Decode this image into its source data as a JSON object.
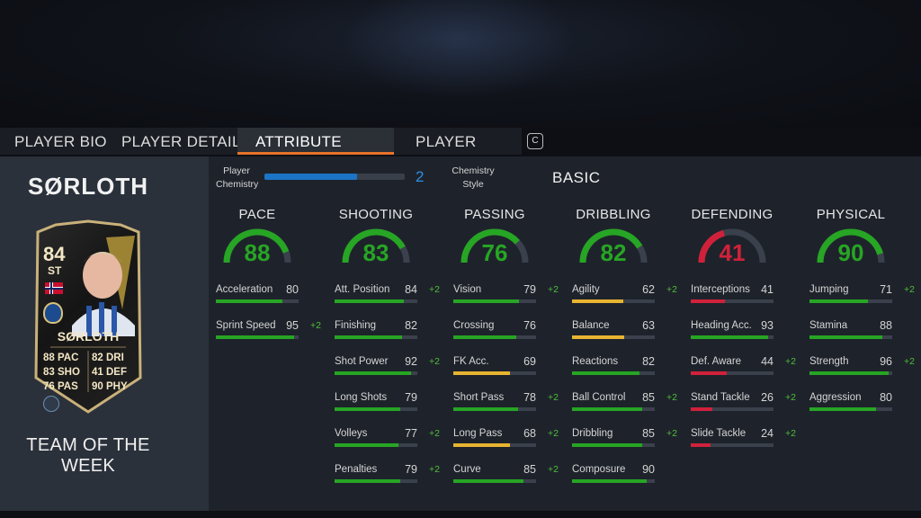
{
  "tabs": [
    {
      "label": "PLAYER BIO"
    },
    {
      "label": "PLAYER DETAILS"
    },
    {
      "label": "ATTRIBUTE DETAILS"
    },
    {
      "label": "PLAYER TRAITS"
    }
  ],
  "key_hint": "C",
  "player": {
    "name": "SØRLOTH",
    "card": {
      "rating": "84",
      "position": "ST",
      "name": "SØRLOTH",
      "stats_left": [
        "88 PAC",
        "83 SHO",
        "76 PAS"
      ],
      "stats_right": [
        "82 DRI",
        "41 DEF",
        "90 PHY"
      ]
    },
    "team_label": "TEAM OF THE WEEK"
  },
  "chemistry": {
    "label": "Player Chemistry",
    "value": "2",
    "fill_fraction": 0.66,
    "style_label": "Chemistry Style",
    "style_value": "BASIC"
  },
  "colors": {
    "green": "#27a524",
    "yellow": "#e8b431",
    "red": "#d1213a",
    "blue": "#1c74c7",
    "orange": "#e8732a"
  },
  "categories": [
    {
      "title": "PACE",
      "value": "88",
      "color": "#27a524",
      "attrs": [
        {
          "name": "Acceleration",
          "value": "80",
          "boost": ""
        },
        {
          "name": "Sprint Speed",
          "value": "95",
          "boost": "+2"
        }
      ]
    },
    {
      "title": "SHOOTING",
      "value": "83",
      "color": "#27a524",
      "attrs": [
        {
          "name": "Att. Position",
          "value": "84",
          "boost": "+2"
        },
        {
          "name": "Finishing",
          "value": "82",
          "boost": ""
        },
        {
          "name": "Shot Power",
          "value": "92",
          "boost": "+2"
        },
        {
          "name": "Long Shots",
          "value": "79",
          "boost": ""
        },
        {
          "name": "Volleys",
          "value": "77",
          "boost": "+2"
        },
        {
          "name": "Penalties",
          "value": "79",
          "boost": "+2"
        }
      ]
    },
    {
      "title": "PASSING",
      "value": "76",
      "color": "#27a524",
      "attrs": [
        {
          "name": "Vision",
          "value": "79",
          "boost": "+2"
        },
        {
          "name": "Crossing",
          "value": "76",
          "boost": ""
        },
        {
          "name": "FK Acc.",
          "value": "69",
          "boost": ""
        },
        {
          "name": "Short Pass",
          "value": "78",
          "boost": "+2"
        },
        {
          "name": "Long Pass",
          "value": "68",
          "boost": "+2"
        },
        {
          "name": "Curve",
          "value": "85",
          "boost": "+2"
        }
      ]
    },
    {
      "title": "DRIBBLING",
      "value": "82",
      "color": "#27a524",
      "attrs": [
        {
          "name": "Agility",
          "value": "62",
          "boost": "+2"
        },
        {
          "name": "Balance",
          "value": "63",
          "boost": ""
        },
        {
          "name": "Reactions",
          "value": "82",
          "boost": ""
        },
        {
          "name": "Ball Control",
          "value": "85",
          "boost": "+2"
        },
        {
          "name": "Dribbling",
          "value": "85",
          "boost": "+2"
        },
        {
          "name": "Composure",
          "value": "90",
          "boost": ""
        }
      ]
    },
    {
      "title": "DEFENDING",
      "value": "41",
      "color": "#d1213a",
      "attrs": [
        {
          "name": "Interceptions",
          "value": "41",
          "boost": ""
        },
        {
          "name": "Heading Acc.",
          "value": "93",
          "boost": ""
        },
        {
          "name": "Def. Aware",
          "value": "44",
          "boost": "+2"
        },
        {
          "name": "Stand Tackle",
          "value": "26",
          "boost": "+2"
        },
        {
          "name": "Slide Tackle",
          "value": "24",
          "boost": "+2"
        }
      ]
    },
    {
      "title": "PHYSICAL",
      "value": "90",
      "color": "#27a524",
      "attrs": [
        {
          "name": "Jumping",
          "value": "71",
          "boost": "+2"
        },
        {
          "name": "Stamina",
          "value": "88",
          "boost": ""
        },
        {
          "name": "Strength",
          "value": "96",
          "boost": "+2"
        },
        {
          "name": "Aggression",
          "value": "80",
          "boost": ""
        }
      ]
    }
  ]
}
